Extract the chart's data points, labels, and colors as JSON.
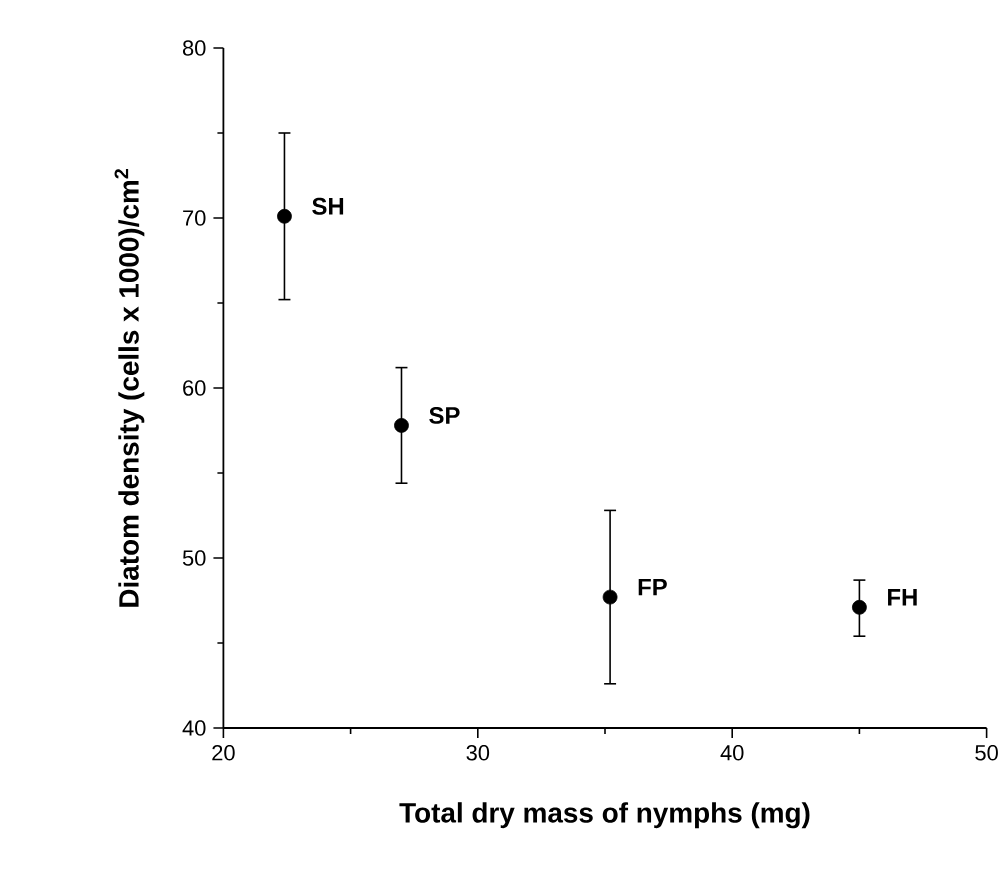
{
  "chart_data": {
    "type": "scatter",
    "xlabel": "Total dry mass of nymphs (mg)",
    "ylabel": "Diatom density (cells x 1000)/cm$^{2}$",
    "x": [
      22.4,
      27.0,
      35.2,
      45.0
    ],
    "values": [
      70.1,
      57.8,
      47.7,
      47.1
    ],
    "errors": [
      [
        65.2,
        75.0
      ],
      [
        54.4,
        61.2
      ],
      [
        42.6,
        52.8
      ],
      [
        45.4,
        48.7
      ]
    ],
    "color": "#000000",
    "marker": "circle",
    "xlim": [
      20,
      50
    ],
    "xticks": [
      20,
      30,
      40,
      50
    ],
    "ylim": [
      40,
      80
    ],
    "yticks": [
      40,
      50,
      60,
      70,
      80
    ],
    "annotations": [
      {
        "text": "SH",
        "x": 22.4,
        "y": 70.1
      },
      {
        "text": "SP",
        "x": 27.0,
        "y": 57.8
      },
      {
        "text": "FP",
        "x": 35.2,
        "y": 47.7
      },
      {
        "text": "FH",
        "x": 45.0,
        "y": 47.1
      }
    ]
  }
}
